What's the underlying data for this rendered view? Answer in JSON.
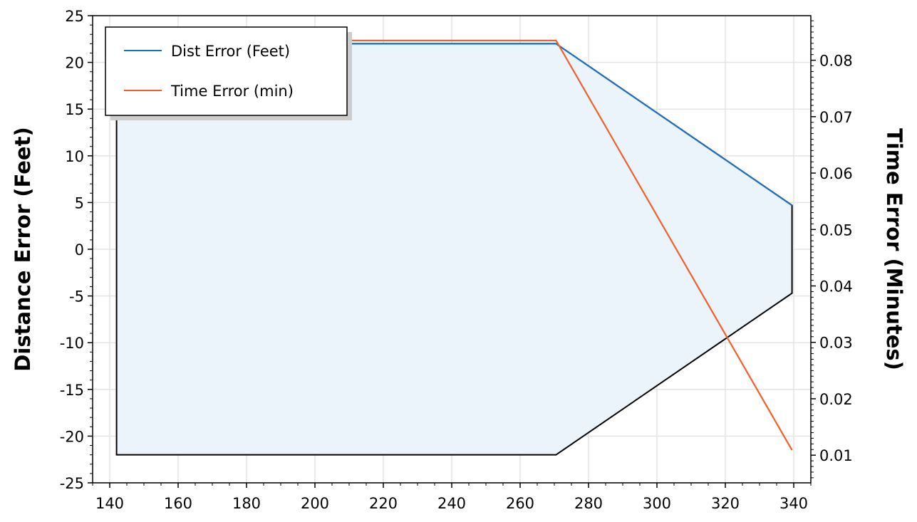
{
  "chart_data": {
    "type": "line",
    "ylabel": "Distance Error (Feet)",
    "y2label": "Time Error (Minutes)",
    "xlim": [
      135,
      345
    ],
    "ylim": [
      -25,
      25
    ],
    "y2lim": [
      0.0051,
      0.0879
    ],
    "x_ticks": [
      140,
      160,
      180,
      200,
      220,
      240,
      260,
      280,
      300,
      320,
      340
    ],
    "y_ticks": [
      -25,
      -20,
      -15,
      -10,
      -5,
      0,
      5,
      10,
      15,
      20,
      25
    ],
    "y2_ticks": [
      0.01,
      0.02,
      0.03,
      0.04,
      0.05,
      0.06,
      0.07,
      0.08
    ],
    "y2_tick_labels": [
      "0.01",
      "0.02",
      "0.03",
      "0.04",
      "0.05",
      "0.06",
      "0.07",
      "0.08"
    ],
    "grid": true,
    "legend_position": "top-left",
    "series": [
      {
        "name": "Dist Error (Feet)",
        "axis": "left",
        "color": "#1f6fbf",
        "x": [
          142,
          270.5,
          339.5
        ],
        "y": [
          22,
          22,
          4.7
        ]
      },
      {
        "name": "Time Error (min)",
        "axis": "right",
        "color": "#f0602a",
        "x": [
          142,
          270.5,
          339.5
        ],
        "y": [
          0.0835,
          0.0835,
          0.0109
        ]
      }
    ],
    "envelope": {
      "fill": "#ebf3fb",
      "stroke": "#000000",
      "x": [
        142,
        270.5,
        339.5,
        339.5,
        270.5,
        142
      ],
      "y": [
        22,
        22,
        4.7,
        -4.7,
        -22,
        -22
      ]
    }
  }
}
